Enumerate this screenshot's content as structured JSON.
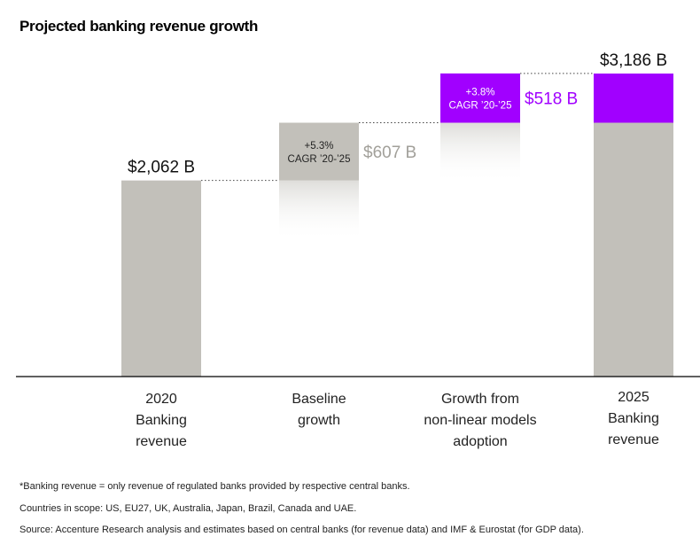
{
  "title": "Projected banking revenue growth",
  "chart_data": {
    "type": "waterfall",
    "title": "Projected banking revenue growth",
    "unit": "$B",
    "ylim": [
      0,
      3186
    ],
    "steps": [
      {
        "category": "2020 Banking revenue",
        "label_lines": [
          "2020",
          "Banking",
          "revenue"
        ],
        "kind": "total",
        "value": 2062,
        "value_label": "$2,062 B"
      },
      {
        "category": "Baseline growth",
        "label_lines": [
          "Baseline",
          "growth"
        ],
        "kind": "increase",
        "value": 607,
        "value_label": "$607 B",
        "cagr_lines": [
          "+5.3%",
          "CAGR ’20-’25"
        ]
      },
      {
        "category": "Growth from non-linear models adoption",
        "label_lines": [
          "Growth from",
          "non-linear models",
          "adoption"
        ],
        "kind": "increase",
        "value": 518,
        "value_label": "$518 B",
        "cagr_lines": [
          "+3.8%",
          "CAGR ’20-’25"
        ]
      },
      {
        "category": "2025 Banking revenue",
        "label_lines": [
          "2025",
          "Banking",
          "revenue"
        ],
        "kind": "total",
        "value": 3186,
        "value_label": "$3,186 B"
      }
    ],
    "colors": {
      "gray": "#c2c0ba",
      "purple": "#a100ff",
      "label_gray": "#a2a09a",
      "axis": "#000000"
    }
  },
  "footnotes": [
    "*Banking revenue = only revenue of regulated banks provided by respective central banks.",
    "Countries in scope: US, EU27, UK, Australia, Japan, Brazil, Canada and UAE.",
    "Source: Accenture Research analysis and estimates based on central banks (for revenue data) and IMF & Eurostat (for GDP data)."
  ]
}
